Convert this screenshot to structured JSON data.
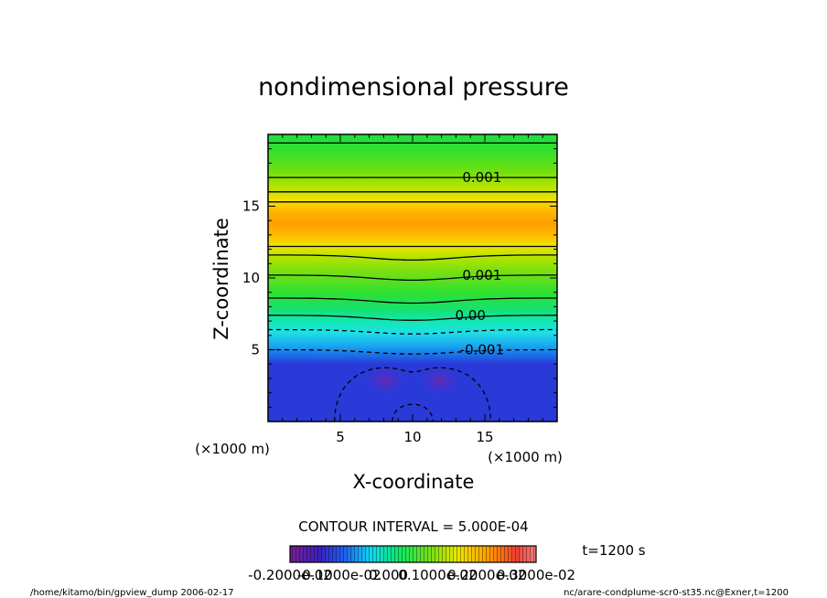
{
  "chart_data": {
    "type": "heatmap",
    "title": "nondimensional pressure",
    "xlabel": "X-coordinate",
    "ylabel": "Z-coordinate",
    "x_unit": "(×1000 m)",
    "y_unit": "(×1000 m)",
    "xlim": [
      0,
      20
    ],
    "ylim": [
      0,
      20
    ],
    "xticks": [
      5,
      10,
      15
    ],
    "yticks": [
      5,
      10,
      15
    ],
    "contour_interval_text": "CONTOUR INTERVAL = 5.000E-04",
    "time_text": "t=1200 s",
    "colorbar_labels": [
      "-0.2000e-02",
      "-0.1000e-02",
      "0.000",
      "0.1000e-02",
      "0.2000e-02",
      "0.3000e-02"
    ],
    "colorbar_range": [
      -0.002,
      0.003
    ],
    "contour_labels": [
      {
        "text": "0.001",
        "x": 14.8,
        "z": 17.0
      },
      {
        "text": "0.001",
        "x": 14.8,
        "z": 10.2
      },
      {
        "text": "0.00",
        "x": 14.0,
        "z": 7.4
      },
      {
        "text": "-0.001",
        "x": 14.8,
        "z": 5.0
      }
    ],
    "bands_z": [
      {
        "z": 0.0,
        "color": "#2a3ad8"
      },
      {
        "z": 4.0,
        "color": "#2a3ad8"
      },
      {
        "z": 4.6,
        "color": "#1a6ee8"
      },
      {
        "z": 5.3,
        "color": "#1aa8f0"
      },
      {
        "z": 6.2,
        "color": "#1ee0e6"
      },
      {
        "z": 7.0,
        "color": "#12e8b0"
      },
      {
        "z": 7.8,
        "color": "#16e070"
      },
      {
        "z": 9.0,
        "color": "#30e030"
      },
      {
        "z": 10.5,
        "color": "#7ae010"
      },
      {
        "z": 11.5,
        "color": "#b8e400"
      },
      {
        "z": 12.3,
        "color": "#f0e400"
      },
      {
        "z": 13.0,
        "color": "#ffb800"
      },
      {
        "z": 13.8,
        "color": "#ffa000"
      },
      {
        "z": 14.6,
        "color": "#ffb400"
      },
      {
        "z": 15.4,
        "color": "#f4e200"
      },
      {
        "z": 16.3,
        "color": "#b8e400"
      },
      {
        "z": 17.5,
        "color": "#6ce010"
      },
      {
        "z": 19.0,
        "color": "#30e030"
      },
      {
        "z": 20.0,
        "color": "#20de40"
      }
    ],
    "footer_left": "/home/kitamo/bin/gpview_dump  2006-02-17",
    "footer_right": "nc/arare-condplume-scr0-st35.nc@Exner,t=1200"
  }
}
